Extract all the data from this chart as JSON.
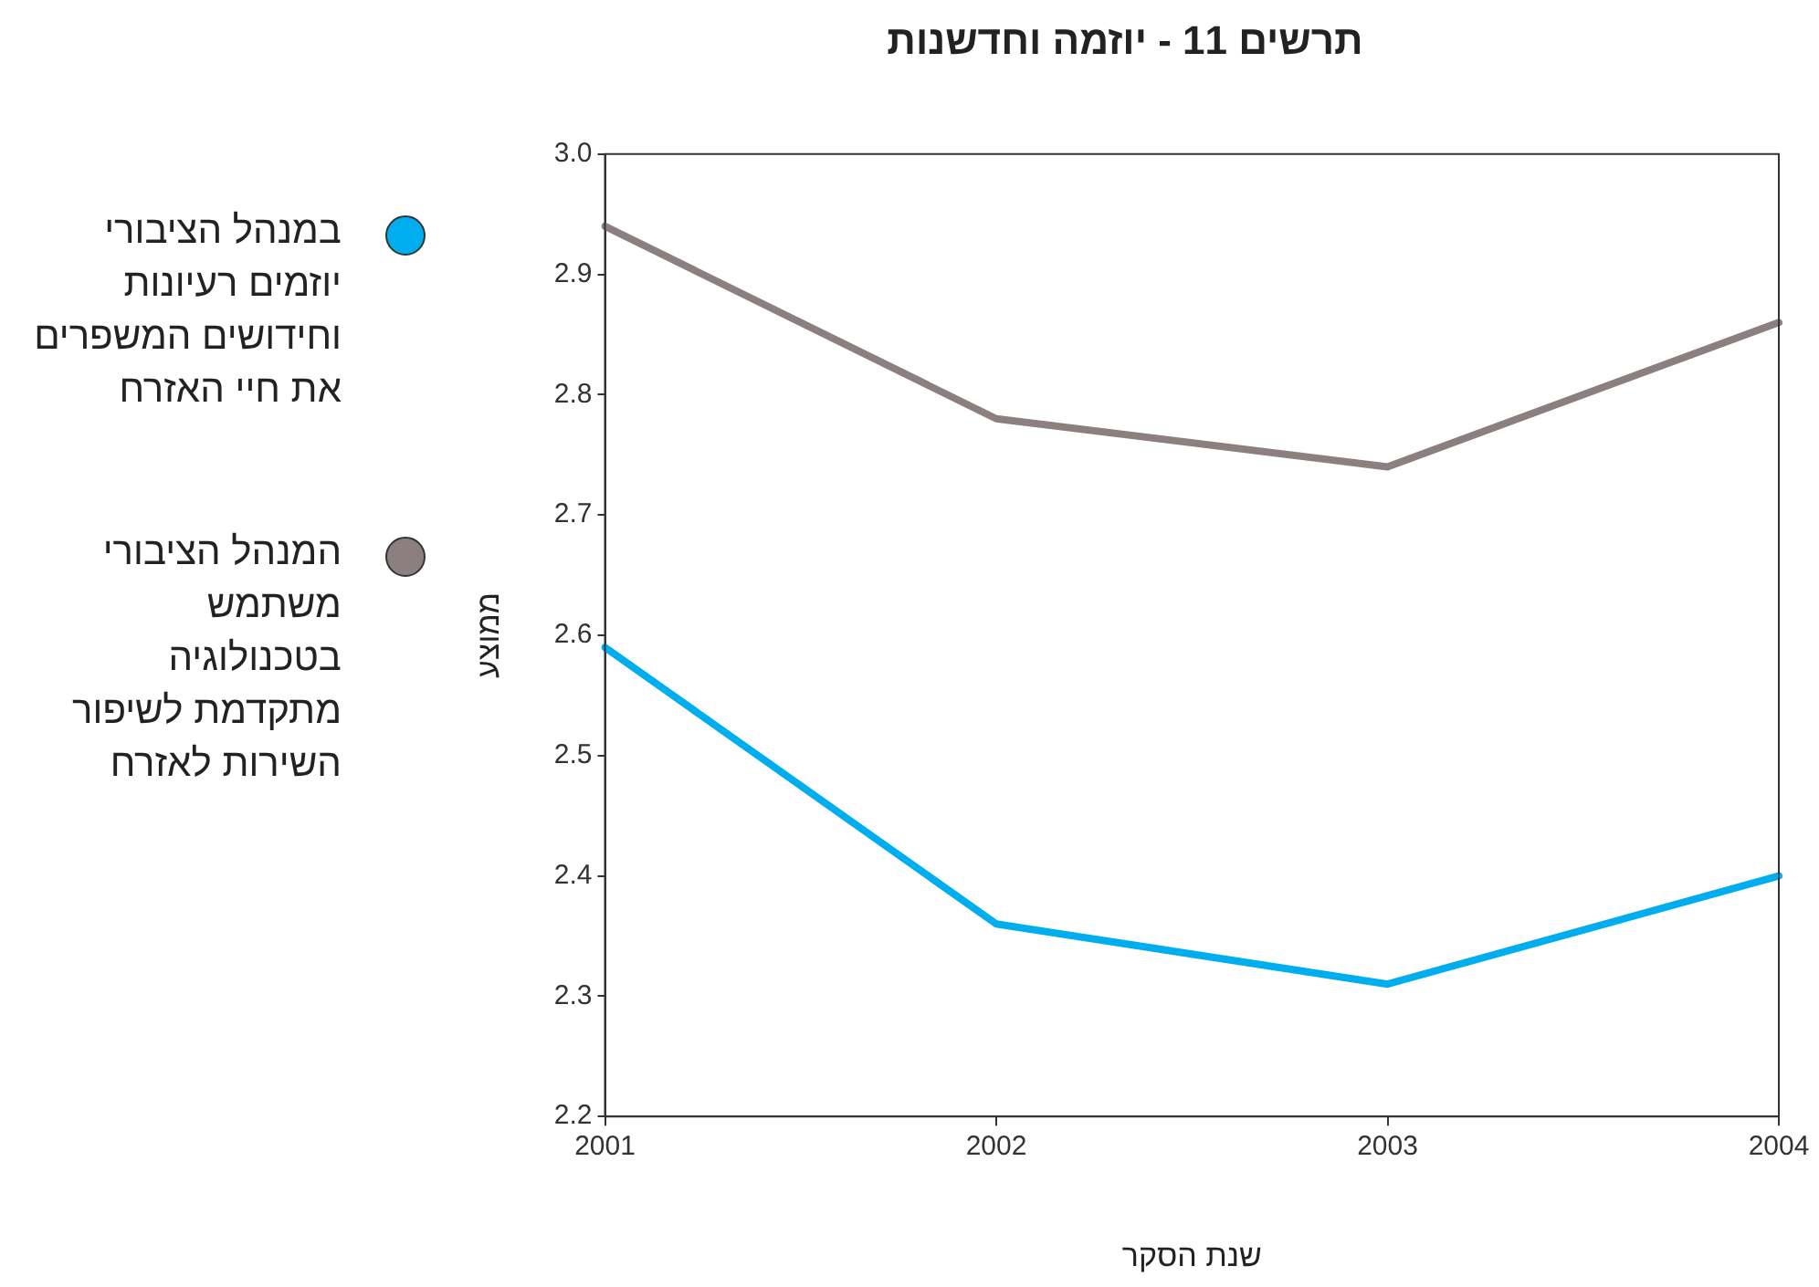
{
  "chart_data": {
    "type": "line",
    "title": "תרשים 11 - יוזמה וחדשנות",
    "xlabel": "שנת הסקר",
    "ylabel": "ממוצע",
    "categories": [
      "2001",
      "2002",
      "2003",
      "2004"
    ],
    "series": [
      {
        "name": "במנהל הציבורי יוזמים רעיונות וחידושים המשפרים את חיי האזרח",
        "color": "#00aeef",
        "values": [
          2.59,
          2.36,
          2.31,
          2.4
        ]
      },
      {
        "name": "המנהל הציבורי משתמש בטכנולוגיה מתקדמת לשיפור השירות לאזרח",
        "color": "#8c7f7f",
        "values": [
          2.94,
          2.78,
          2.74,
          2.86
        ]
      }
    ],
    "ylim": [
      2.2,
      3.0
    ],
    "yticks": [
      {
        "value": 2.2,
        "label": "2.2"
      },
      {
        "value": 2.3,
        "label": "2.3"
      },
      {
        "value": 2.4,
        "label": "2.4"
      },
      {
        "value": 2.5,
        "label": "2.5"
      },
      {
        "value": 2.6,
        "label": "2.6"
      },
      {
        "value": 2.7,
        "label": "2.7"
      },
      {
        "value": 2.8,
        "label": "2.8"
      },
      {
        "value": 2.9,
        "label": "2.9"
      },
      {
        "value": 3.0,
        "label": "3.0"
      }
    ],
    "grid": false,
    "legend": "left",
    "marker": "none",
    "line_style": "solid"
  }
}
